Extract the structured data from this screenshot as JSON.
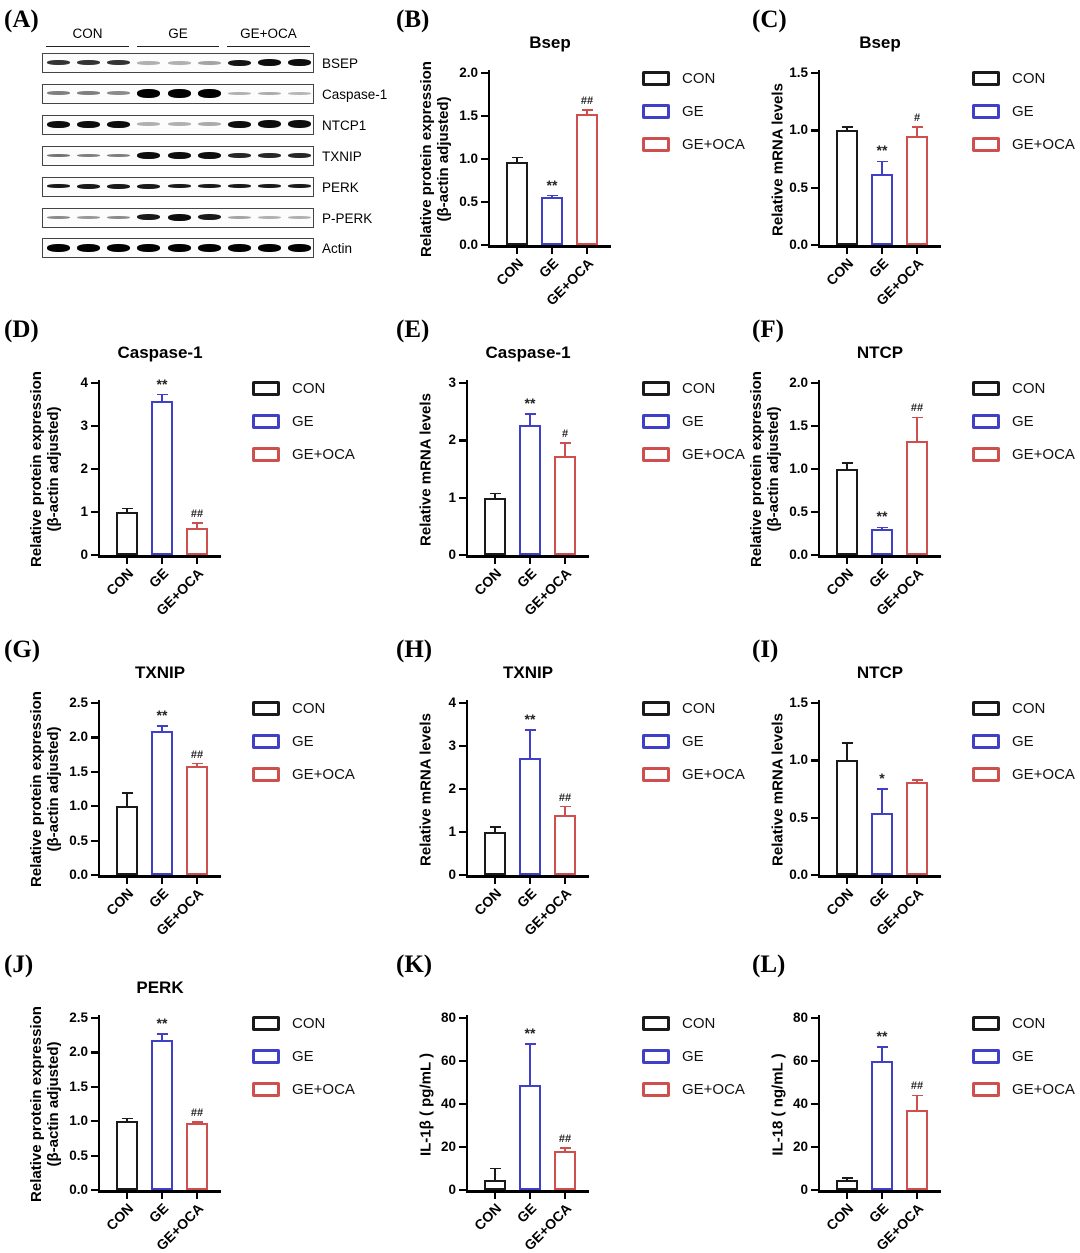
{
  "figure": {
    "groups": [
      "CON",
      "GE",
      "GE+OCA"
    ],
    "group_colors": [
      "#1a1a1a",
      "#3f3fc8",
      "#cf4f4e"
    ],
    "background": "#ffffff"
  },
  "panel_a": {
    "panel_label": "(A)",
    "group_headers": [
      "CON",
      "GE",
      "GE+OCA"
    ],
    "rows": [
      {
        "label": "BSEP",
        "bands": [
          [
            0.8,
            5
          ],
          [
            0.8,
            5
          ],
          [
            0.8,
            5
          ],
          [
            0.3,
            4
          ],
          [
            0.3,
            4
          ],
          [
            0.35,
            4
          ],
          [
            0.92,
            6
          ],
          [
            0.95,
            7
          ],
          [
            0.95,
            7
          ]
        ]
      },
      {
        "label": "Caspase-1",
        "bands": [
          [
            0.5,
            4
          ],
          [
            0.5,
            4
          ],
          [
            0.45,
            4
          ],
          [
            1,
            9
          ],
          [
            1,
            9
          ],
          [
            1,
            9
          ],
          [
            0.3,
            3
          ],
          [
            0.32,
            3
          ],
          [
            0.28,
            3
          ]
        ]
      },
      {
        "label": "NTCP1",
        "bands": [
          [
            0.95,
            7
          ],
          [
            0.95,
            7
          ],
          [
            0.95,
            7
          ],
          [
            0.3,
            4
          ],
          [
            0.3,
            4
          ],
          [
            0.32,
            4
          ],
          [
            0.95,
            7
          ],
          [
            0.95,
            8
          ],
          [
            0.95,
            8
          ]
        ]
      },
      {
        "label": "TXNIP",
        "bands": [
          [
            0.55,
            3
          ],
          [
            0.5,
            3
          ],
          [
            0.5,
            3
          ],
          [
            0.95,
            7
          ],
          [
            0.95,
            7
          ],
          [
            0.95,
            7
          ],
          [
            0.85,
            5
          ],
          [
            0.85,
            5
          ],
          [
            0.85,
            5
          ]
        ]
      },
      {
        "label": "PERK",
        "bands": [
          [
            0.9,
            4
          ],
          [
            0.9,
            5
          ],
          [
            0.9,
            5
          ],
          [
            0.9,
            5
          ],
          [
            0.9,
            4
          ],
          [
            0.9,
            4
          ],
          [
            0.9,
            4
          ],
          [
            0.9,
            4
          ],
          [
            0.9,
            4
          ]
        ]
      },
      {
        "label": "P-PERK",
        "bands": [
          [
            0.45,
            3
          ],
          [
            0.4,
            3
          ],
          [
            0.45,
            3
          ],
          [
            0.9,
            6
          ],
          [
            0.95,
            7
          ],
          [
            0.9,
            6
          ],
          [
            0.35,
            3
          ],
          [
            0.3,
            3
          ],
          [
            0.3,
            3
          ]
        ]
      },
      {
        "label": "Actin",
        "bands": [
          [
            1,
            8
          ],
          [
            1,
            8
          ],
          [
            1,
            8
          ],
          [
            1,
            8
          ],
          [
            1,
            8
          ],
          [
            1,
            8
          ],
          [
            1,
            8
          ],
          [
            1,
            8
          ],
          [
            1,
            8
          ]
        ]
      }
    ]
  },
  "chart_data": [
    {
      "panel": "B",
      "panel_label": "(B)",
      "type": "bar",
      "title": "Bsep",
      "ylabel_lines": [
        "Relative protein expression",
        "(β-actin adjusted)"
      ],
      "categories": [
        "CON",
        "GE",
        "GE+OCA"
      ],
      "values": [
        0.96,
        0.56,
        1.52
      ],
      "errors": [
        0.06,
        0.015,
        0.05
      ],
      "significance": [
        "",
        "**",
        "##"
      ],
      "ylim": [
        0,
        2.0
      ],
      "ytick_labels": [
        "0.0",
        "0.5",
        "1.0",
        "1.5",
        "2.0"
      ],
      "xlabel": "",
      "legend": [
        "CON",
        "GE",
        "GE+OCA"
      ],
      "legend_position": "right",
      "grid": false
    },
    {
      "panel": "C",
      "panel_label": "(C)",
      "type": "bar",
      "title": "Bsep",
      "ylabel_lines": [
        "Relative mRNA levels"
      ],
      "categories": [
        "CON",
        "GE",
        "GE+OCA"
      ],
      "values": [
        1.0,
        0.62,
        0.95
      ],
      "errors": [
        0.03,
        0.11,
        0.08
      ],
      "significance": [
        "",
        "**",
        "#"
      ],
      "ylim": [
        0,
        1.5
      ],
      "ytick_labels": [
        "0.0",
        "0.5",
        "1.0",
        "1.5"
      ],
      "xlabel": "",
      "legend": [
        "CON",
        "GE",
        "GE+OCA"
      ],
      "legend_position": "right",
      "grid": false
    },
    {
      "panel": "D",
      "panel_label": "(D)",
      "type": "bar",
      "title": "Caspase-1",
      "ylabel_lines": [
        "Relative protein expression",
        "(β-actin adjusted)"
      ],
      "categories": [
        "CON",
        "GE",
        "GE+OCA"
      ],
      "values": [
        1.0,
        3.58,
        0.63
      ],
      "errors": [
        0.08,
        0.15,
        0.12
      ],
      "significance": [
        "",
        "**",
        "##"
      ],
      "ylim": [
        0,
        4
      ],
      "ytick_labels": [
        "0",
        "1",
        "2",
        "3",
        "4"
      ],
      "xlabel": "",
      "legend": [
        "CON",
        "GE",
        "GE+OCA"
      ],
      "legend_position": "right",
      "grid": false
    },
    {
      "panel": "E",
      "panel_label": "(E)",
      "type": "bar",
      "title": "Caspase-1",
      "ylabel_lines": [
        "Relative mRNA levels"
      ],
      "categories": [
        "CON",
        "GE",
        "GE+OCA"
      ],
      "values": [
        1.0,
        2.26,
        1.73
      ],
      "errors": [
        0.07,
        0.2,
        0.22
      ],
      "significance": [
        "",
        "**",
        "#"
      ],
      "ylim": [
        0,
        3
      ],
      "ytick_labels": [
        "0",
        "1",
        "2",
        "3"
      ],
      "xlabel": "",
      "legend": [
        "CON",
        "GE",
        "GE+OCA"
      ],
      "legend_position": "right",
      "grid": false
    },
    {
      "panel": "F",
      "panel_label": "(F)",
      "type": "bar",
      "title": "NTCP",
      "ylabel_lines": [
        "Relative protein expression",
        "(β-actin adjusted)"
      ],
      "categories": [
        "CON",
        "GE",
        "GE+OCA"
      ],
      "values": [
        1.0,
        0.3,
        1.32
      ],
      "errors": [
        0.07,
        0.02,
        0.28
      ],
      "significance": [
        "",
        "**",
        "##"
      ],
      "ylim": [
        0,
        2.0
      ],
      "ytick_labels": [
        "0.0",
        "0.5",
        "1.0",
        "1.5",
        "2.0"
      ],
      "xlabel": "",
      "legend": [
        "CON",
        "GE",
        "GE+OCA"
      ],
      "legend_position": "right",
      "grid": false
    },
    {
      "panel": "G",
      "panel_label": "(G)",
      "type": "bar",
      "title": "TXNIP",
      "ylabel_lines": [
        "Relative protein expression",
        "(β-actin adjusted)"
      ],
      "categories": [
        "CON",
        "GE",
        "GE+OCA"
      ],
      "values": [
        1.0,
        2.1,
        1.58
      ],
      "errors": [
        0.19,
        0.07,
        0.04
      ],
      "significance": [
        "",
        "**",
        "##"
      ],
      "ylim": [
        0,
        2.5
      ],
      "ytick_labels": [
        "0.0",
        "0.5",
        "1.0",
        "1.5",
        "2.0",
        "2.5"
      ],
      "xlabel": "",
      "legend": [
        "CON",
        "GE",
        "GE+OCA"
      ],
      "legend_position": "right",
      "grid": false
    },
    {
      "panel": "H",
      "panel_label": "(H)",
      "type": "bar",
      "title": "TXNIP",
      "ylabel_lines": [
        "Relative mRNA levels"
      ],
      "categories": [
        "CON",
        "GE",
        "GE+OCA"
      ],
      "values": [
        1.0,
        2.72,
        1.4
      ],
      "errors": [
        0.11,
        0.65,
        0.19
      ],
      "significance": [
        "",
        "**",
        "##"
      ],
      "ylim": [
        0,
        4
      ],
      "ytick_labels": [
        "0",
        "1",
        "2",
        "3",
        "4"
      ],
      "xlabel": "",
      "legend": [
        "CON",
        "GE",
        "GE+OCA"
      ],
      "legend_position": "right",
      "grid": false
    },
    {
      "panel": "I",
      "panel_label": "(I)",
      "type": "bar",
      "title": "NTCP",
      "ylabel_lines": [
        "Relative mRNA levels"
      ],
      "categories": [
        "CON",
        "GE",
        "GE+OCA"
      ],
      "values": [
        1.0,
        0.54,
        0.81
      ],
      "errors": [
        0.15,
        0.21,
        0.02
      ],
      "significance": [
        "",
        "*",
        ""
      ],
      "ylim": [
        0,
        1.5
      ],
      "ytick_labels": [
        "0.0",
        "0.5",
        "1.0",
        "1.5"
      ],
      "xlabel": "",
      "legend": [
        "CON",
        "GE",
        "GE+OCA"
      ],
      "legend_position": "right",
      "grid": false
    },
    {
      "panel": "J",
      "panel_label": "(J)",
      "type": "bar",
      "title": "PERK",
      "ylabel_lines": [
        "Relative protein expression",
        "(β-actin adjusted)"
      ],
      "categories": [
        "CON",
        "GE",
        "GE+OCA"
      ],
      "values": [
        1.0,
        2.18,
        0.97
      ],
      "errors": [
        0.04,
        0.09,
        0.02
      ],
      "significance": [
        "",
        "**",
        "##"
      ],
      "ylim": [
        0,
        2.5
      ],
      "ytick_labels": [
        "0.0",
        "0.5",
        "1.0",
        "1.5",
        "2.0",
        "2.5"
      ],
      "xlabel": "",
      "legend": [
        "CON",
        "GE",
        "GE+OCA"
      ],
      "legend_position": "right",
      "grid": false
    },
    {
      "panel": "K",
      "panel_label": "(K)",
      "type": "bar",
      "title": "",
      "ylabel_lines": [
        "IL-1β ( pg/mL )"
      ],
      "categories": [
        "CON",
        "GE",
        "GE+OCA"
      ],
      "values": [
        4.5,
        49,
        18
      ],
      "errors": [
        5.5,
        19,
        1.5
      ],
      "significance": [
        "",
        "**",
        "##"
      ],
      "ylim": [
        0,
        80
      ],
      "ytick_labels": [
        "0",
        "20",
        "40",
        "60",
        "80"
      ],
      "xlabel": "",
      "legend": [
        "CON",
        "GE",
        "GE+OCA"
      ],
      "legend_position": "right",
      "grid": false
    },
    {
      "panel": "L",
      "panel_label": "(L)",
      "type": "bar",
      "title": "",
      "ylabel_lines": [
        "IL-18 ( ng/mL )"
      ],
      "categories": [
        "CON",
        "GE",
        "GE+OCA"
      ],
      "values": [
        4.5,
        60,
        37
      ],
      "errors": [
        1.0,
        6.5,
        7.0
      ],
      "significance": [
        "",
        "**",
        "##"
      ],
      "ylim": [
        0,
        80
      ],
      "ytick_labels": [
        "0",
        "20",
        "40",
        "60",
        "80"
      ],
      "xlabel": "",
      "legend": [
        "CON",
        "GE",
        "GE+OCA"
      ],
      "legend_position": "right",
      "grid": false
    }
  ]
}
